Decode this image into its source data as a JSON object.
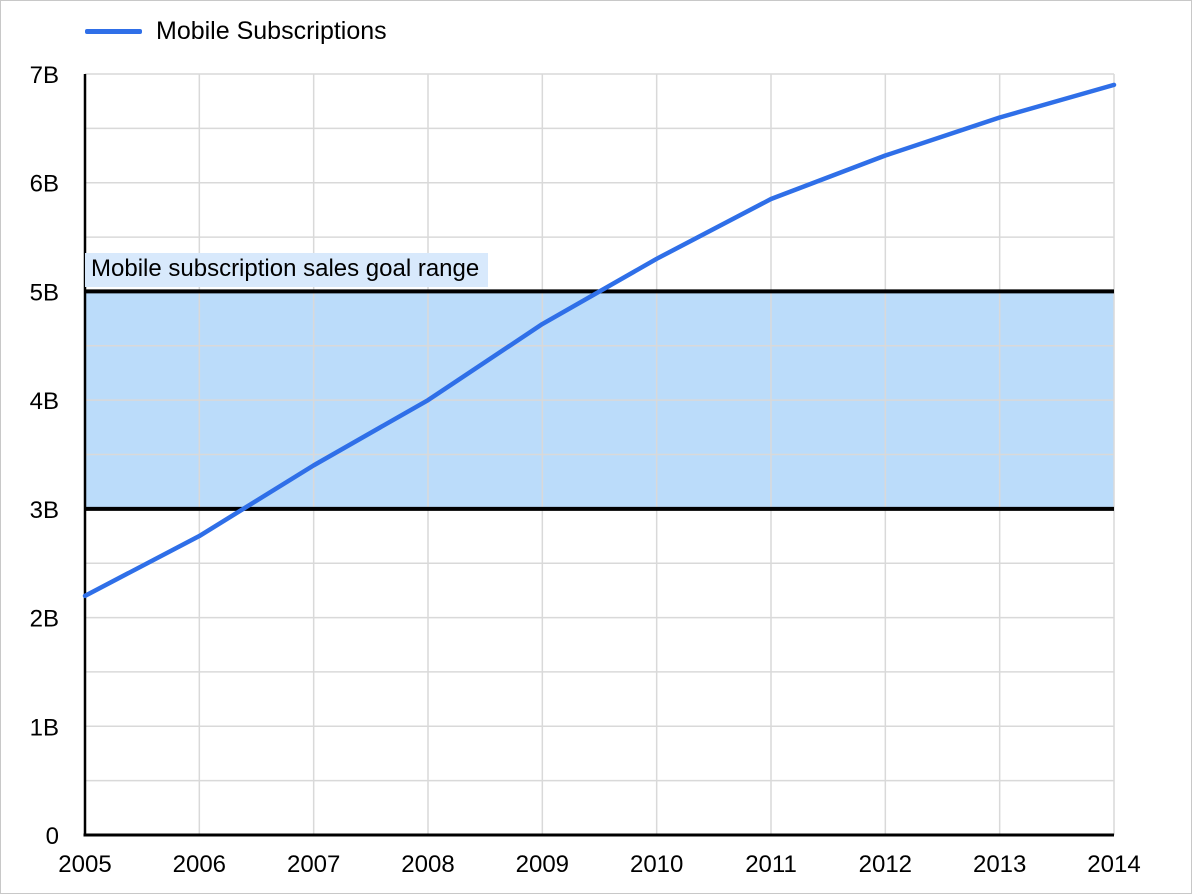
{
  "page": {
    "background": "#ffffff",
    "border_color": "#c8c8c8"
  },
  "legend": {
    "position": "top-left",
    "items": [
      {
        "label": "Mobile Subscriptions",
        "color": "#2f6fe8",
        "swatch": "line"
      }
    ]
  },
  "chart_data": {
    "type": "line",
    "title": "",
    "xlabel": "",
    "ylabel": "",
    "x": [
      2005,
      2006,
      2007,
      2008,
      2009,
      2010,
      2011,
      2012,
      2013,
      2014
    ],
    "x_tick_labels": [
      "2005",
      "2006",
      "2007",
      "2008",
      "2009",
      "2010",
      "2011",
      "2012",
      "2013",
      "2014"
    ],
    "series": [
      {
        "name": "Mobile Subscriptions",
        "color": "#2f6fe8",
        "values": [
          2.2,
          2.75,
          3.4,
          4.0,
          4.7,
          5.3,
          5.85,
          6.25,
          6.6,
          6.9
        ]
      }
    ],
    "unit": "B",
    "xlim": [
      2005,
      2014
    ],
    "ylim": [
      0,
      7
    ],
    "y_ticks": [
      {
        "value": 0,
        "label": "0"
      },
      {
        "value": 1,
        "label": "1B"
      },
      {
        "value": 2,
        "label": "2B"
      },
      {
        "value": 3,
        "label": "3B"
      },
      {
        "value": 4,
        "label": "4B"
      },
      {
        "value": 5,
        "label": "5B"
      },
      {
        "value": 6,
        "label": "6B"
      },
      {
        "value": 7,
        "label": "7B"
      }
    ],
    "grid": {
      "show": true,
      "color": "#d9d9d9",
      "minor_y_step": 0.5,
      "x_step_years": 1
    },
    "axis_color": "#000000",
    "band": {
      "label": "Mobile subscription sales goal range",
      "from": 3,
      "to": 5,
      "fill": "#bbdcfa",
      "border_color": "#000000",
      "border_width": 4,
      "label_bg": "#d8e9fc"
    },
    "legend_position": "top-left"
  }
}
